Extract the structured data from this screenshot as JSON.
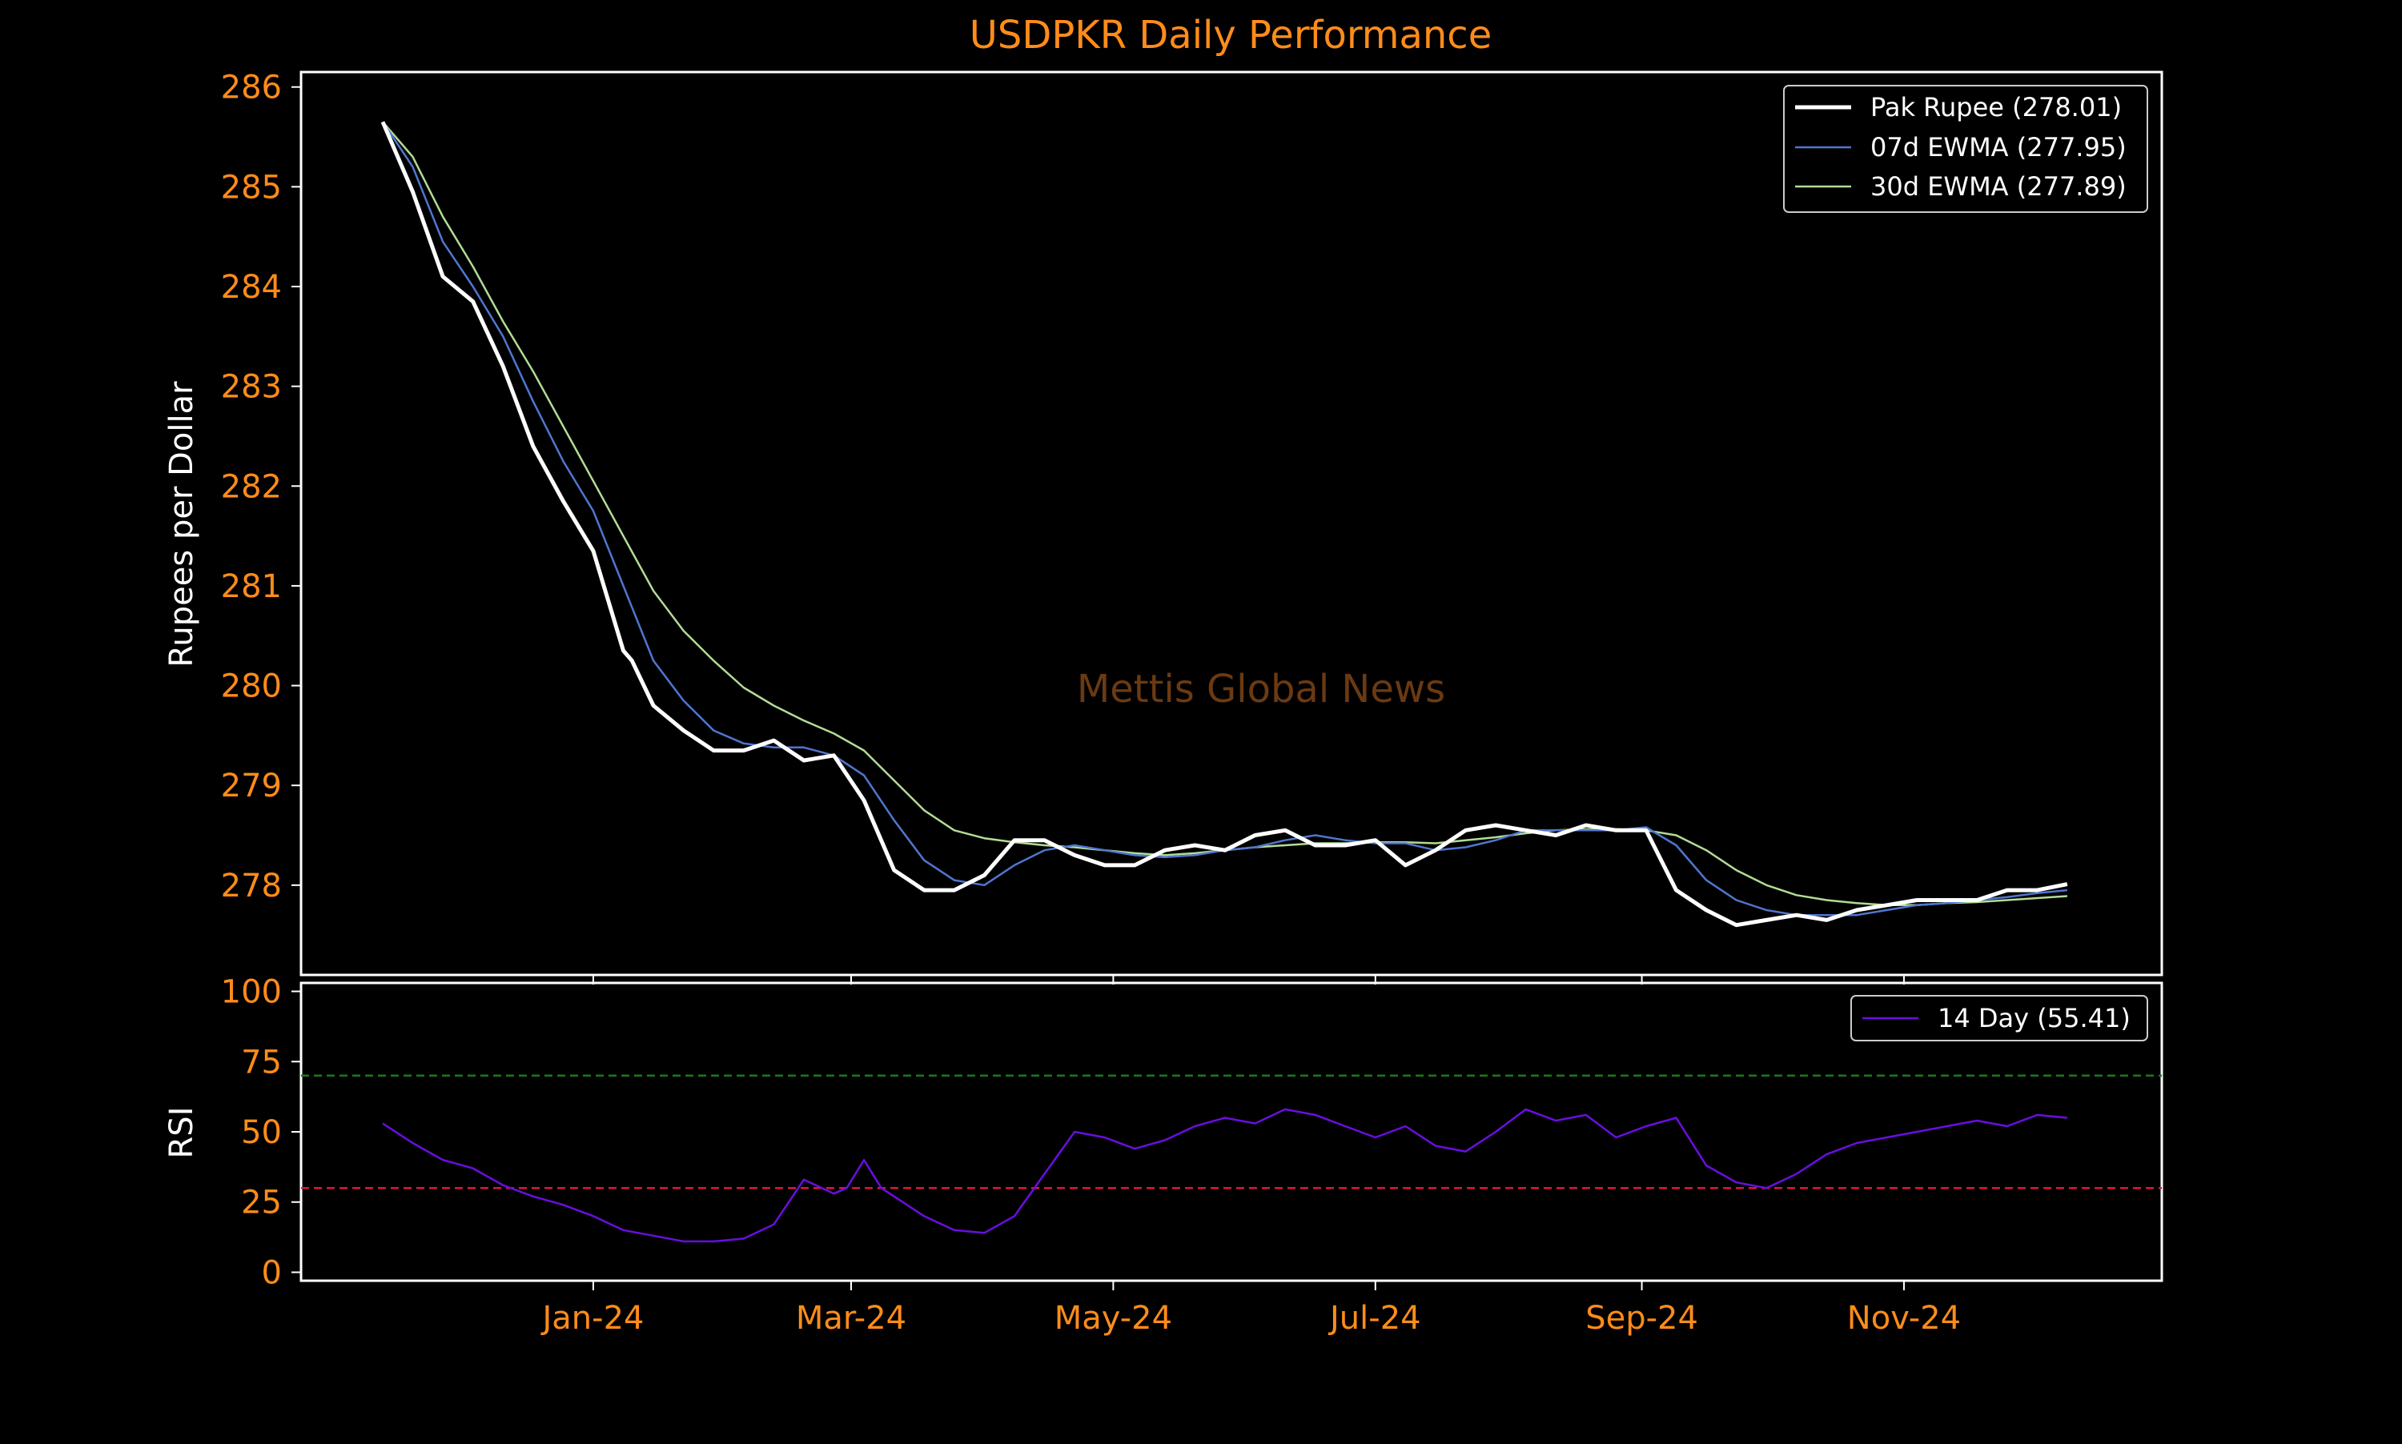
{
  "chart_data": [
    {
      "type": "line",
      "title": "USDPKR Daily Performance",
      "ylabel": "Rupees per Dollar",
      "xlabel": "",
      "ylim": [
        277.1,
        286.15
      ],
      "y_ticks": [
        278,
        279,
        280,
        281,
        282,
        283,
        284,
        285,
        286
      ],
      "x_ticks": [
        "Jan-24",
        "Mar-24",
        "May-24",
        "Jul-24",
        "Sep-24",
        "Nov-24"
      ],
      "x_tick_dates": [
        "2024-01-01",
        "2024-03-01",
        "2024-05-01",
        "2024-07-01",
        "2024-09-01",
        "2024-11-01"
      ],
      "xlim": [
        "2023-10-25",
        "2024-12-31"
      ],
      "grid": false,
      "legend_position": "top-right",
      "watermark": "Mettis Global News",
      "series": [
        {
          "name": "Pak Rupee (278.01)",
          "color": "#ffffff",
          "x": [
            "2023-11-13",
            "2023-11-20",
            "2023-11-27",
            "2023-12-04",
            "2023-12-11",
            "2023-12-18",
            "2023-12-25",
            "2024-01-01",
            "2024-01-08",
            "2024-01-10",
            "2024-01-15",
            "2024-01-22",
            "2024-01-29",
            "2024-02-05",
            "2024-02-12",
            "2024-02-19",
            "2024-02-26",
            "2024-03-04",
            "2024-03-11",
            "2024-03-18",
            "2024-03-25",
            "2024-04-01",
            "2024-04-08",
            "2024-04-15",
            "2024-04-22",
            "2024-04-29",
            "2024-05-06",
            "2024-05-13",
            "2024-05-20",
            "2024-05-27",
            "2024-06-03",
            "2024-06-10",
            "2024-06-17",
            "2024-06-24",
            "2024-07-01",
            "2024-07-08",
            "2024-07-15",
            "2024-07-22",
            "2024-07-29",
            "2024-08-05",
            "2024-08-12",
            "2024-08-19",
            "2024-08-26",
            "2024-09-02",
            "2024-09-09",
            "2024-09-16",
            "2024-09-23",
            "2024-09-30",
            "2024-10-07",
            "2024-10-14",
            "2024-10-21",
            "2024-10-28",
            "2024-11-04",
            "2024-11-11",
            "2024-11-18",
            "2024-11-25",
            "2024-12-02",
            "2024-12-09"
          ],
          "values": [
            285.65,
            284.95,
            284.1,
            283.85,
            283.2,
            282.4,
            281.85,
            281.35,
            280.35,
            280.25,
            279.8,
            279.55,
            279.35,
            279.35,
            279.45,
            279.25,
            279.3,
            278.85,
            278.15,
            277.95,
            277.95,
            278.1,
            278.45,
            278.45,
            278.3,
            278.2,
            278.2,
            278.35,
            278.4,
            278.35,
            278.5,
            278.55,
            278.4,
            278.4,
            278.45,
            278.2,
            278.35,
            278.55,
            278.6,
            278.55,
            278.5,
            278.6,
            278.55,
            278.55,
            277.95,
            277.75,
            277.6,
            277.65,
            277.7,
            277.65,
            277.75,
            277.8,
            277.85,
            277.85,
            277.85,
            277.95,
            277.95,
            278.01
          ]
        },
        {
          "name": "07d EWMA (277.95)",
          "color": "#4f76d0",
          "x": [
            "2023-11-13",
            "2023-11-20",
            "2023-11-27",
            "2023-12-04",
            "2023-12-11",
            "2023-12-18",
            "2023-12-25",
            "2024-01-01",
            "2024-01-08",
            "2024-01-15",
            "2024-01-22",
            "2024-01-29",
            "2024-02-05",
            "2024-02-12",
            "2024-02-19",
            "2024-02-26",
            "2024-03-04",
            "2024-03-11",
            "2024-03-18",
            "2024-03-25",
            "2024-04-01",
            "2024-04-08",
            "2024-04-15",
            "2024-04-22",
            "2024-04-29",
            "2024-05-06",
            "2024-05-13",
            "2024-05-20",
            "2024-05-27",
            "2024-06-03",
            "2024-06-10",
            "2024-06-17",
            "2024-06-24",
            "2024-07-01",
            "2024-07-08",
            "2024-07-15",
            "2024-07-22",
            "2024-07-29",
            "2024-08-05",
            "2024-08-12",
            "2024-08-19",
            "2024-08-26",
            "2024-09-02",
            "2024-09-09",
            "2024-09-16",
            "2024-09-23",
            "2024-09-30",
            "2024-10-07",
            "2024-10-14",
            "2024-10-21",
            "2024-10-28",
            "2024-11-04",
            "2024-11-11",
            "2024-11-18",
            "2024-11-25",
            "2024-12-02",
            "2024-12-09"
          ],
          "values": [
            285.65,
            285.2,
            284.45,
            284.0,
            283.5,
            282.85,
            282.25,
            281.75,
            281.0,
            280.25,
            279.85,
            279.55,
            279.42,
            279.38,
            279.38,
            279.3,
            279.1,
            278.65,
            278.25,
            278.05,
            278.0,
            278.2,
            278.35,
            278.4,
            278.35,
            278.3,
            278.28,
            278.3,
            278.35,
            278.38,
            278.45,
            278.5,
            278.45,
            278.42,
            278.42,
            278.35,
            278.38,
            278.45,
            278.55,
            278.55,
            278.55,
            278.55,
            278.58,
            278.4,
            278.05,
            277.85,
            277.75,
            277.7,
            277.7,
            277.7,
            277.75,
            277.8,
            277.82,
            277.85,
            277.88,
            277.92,
            277.95
          ]
        },
        {
          "name": "30d EWMA (277.89)",
          "color": "#b2dc95",
          "x": [
            "2023-11-13",
            "2023-11-20",
            "2023-11-27",
            "2023-12-04",
            "2023-12-11",
            "2023-12-18",
            "2023-12-25",
            "2024-01-01",
            "2024-01-08",
            "2024-01-15",
            "2024-01-22",
            "2024-01-29",
            "2024-02-05",
            "2024-02-12",
            "2024-02-19",
            "2024-02-26",
            "2024-03-04",
            "2024-03-11",
            "2024-03-18",
            "2024-03-25",
            "2024-04-01",
            "2024-04-08",
            "2024-04-15",
            "2024-04-22",
            "2024-04-29",
            "2024-05-06",
            "2024-05-13",
            "2024-05-20",
            "2024-05-27",
            "2024-06-03",
            "2024-06-10",
            "2024-06-17",
            "2024-06-24",
            "2024-07-01",
            "2024-07-08",
            "2024-07-15",
            "2024-07-22",
            "2024-07-29",
            "2024-08-05",
            "2024-08-12",
            "2024-08-19",
            "2024-08-26",
            "2024-09-02",
            "2024-09-09",
            "2024-09-16",
            "2024-09-23",
            "2024-09-30",
            "2024-10-07",
            "2024-10-14",
            "2024-10-21",
            "2024-10-28",
            "2024-11-04",
            "2024-11-11",
            "2024-11-18",
            "2024-11-25",
            "2024-12-02",
            "2024-12-09"
          ],
          "values": [
            285.65,
            285.3,
            284.7,
            284.2,
            283.65,
            283.15,
            282.6,
            282.05,
            281.5,
            280.95,
            280.55,
            280.25,
            279.98,
            279.8,
            279.65,
            279.52,
            279.35,
            279.05,
            278.75,
            278.55,
            278.47,
            278.43,
            278.4,
            278.38,
            278.35,
            278.32,
            278.3,
            278.32,
            278.35,
            278.38,
            278.4,
            278.42,
            278.42,
            278.43,
            278.43,
            278.42,
            278.45,
            278.48,
            278.52,
            278.55,
            278.56,
            278.56,
            278.55,
            278.5,
            278.35,
            278.15,
            278.0,
            277.9,
            277.85,
            277.82,
            277.8,
            277.8,
            277.82,
            277.83,
            277.85,
            277.87,
            277.89
          ]
        }
      ]
    },
    {
      "type": "line",
      "title": "",
      "ylabel": "RSI",
      "xlabel": "",
      "ylim": [
        -3,
        103
      ],
      "y_ticks": [
        0,
        25,
        50,
        75,
        100
      ],
      "x_ticks": [
        "Jan-24",
        "Mar-24",
        "May-24",
        "Jul-24",
        "Sep-24",
        "Nov-24"
      ],
      "x_tick_dates": [
        "2024-01-01",
        "2024-03-01",
        "2024-05-01",
        "2024-07-01",
        "2024-09-01",
        "2024-11-01"
      ],
      "xlim": [
        "2023-10-25",
        "2024-12-31"
      ],
      "grid": false,
      "legend_position": "top-right",
      "reference_lines": [
        {
          "value": 70,
          "color": "#1a7a1a"
        },
        {
          "value": 30,
          "color": "#e0143c"
        }
      ],
      "series": [
        {
          "name": "14 Day (55.41)",
          "color": "#6a0ee0",
          "x": [
            "2023-11-13",
            "2023-11-20",
            "2023-11-27",
            "2023-12-04",
            "2023-12-11",
            "2023-12-18",
            "2023-12-25",
            "2024-01-01",
            "2024-01-08",
            "2024-01-15",
            "2024-01-22",
            "2024-01-29",
            "2024-02-05",
            "2024-02-12",
            "2024-02-19",
            "2024-02-26",
            "2024-02-29",
            "2024-03-04",
            "2024-03-08",
            "2024-03-11",
            "2024-03-18",
            "2024-03-25",
            "2024-04-01",
            "2024-04-08",
            "2024-04-15",
            "2024-04-22",
            "2024-04-29",
            "2024-05-06",
            "2024-05-13",
            "2024-05-20",
            "2024-05-27",
            "2024-06-03",
            "2024-06-10",
            "2024-06-17",
            "2024-06-24",
            "2024-07-01",
            "2024-07-08",
            "2024-07-15",
            "2024-07-22",
            "2024-07-29",
            "2024-08-05",
            "2024-08-12",
            "2024-08-19",
            "2024-08-26",
            "2024-09-02",
            "2024-09-09",
            "2024-09-16",
            "2024-09-23",
            "2024-09-30",
            "2024-10-07",
            "2024-10-14",
            "2024-10-21",
            "2024-10-28",
            "2024-11-04",
            "2024-11-11",
            "2024-11-18",
            "2024-11-25",
            "2024-12-02",
            "2024-12-09"
          ],
          "values": [
            53,
            46,
            40,
            37,
            31,
            27,
            24,
            20,
            15,
            13,
            11,
            11,
            12,
            17,
            33,
            28,
            30,
            40,
            30,
            27,
            20,
            15,
            14,
            20,
            35,
            50,
            48,
            44,
            47,
            52,
            55,
            53,
            58,
            56,
            52,
            48,
            52,
            45,
            43,
            50,
            58,
            54,
            56,
            48,
            52,
            55,
            38,
            32,
            30,
            35,
            42,
            46,
            48,
            50,
            52,
            54,
            52,
            56,
            55
          ]
        }
      ]
    }
  ]
}
